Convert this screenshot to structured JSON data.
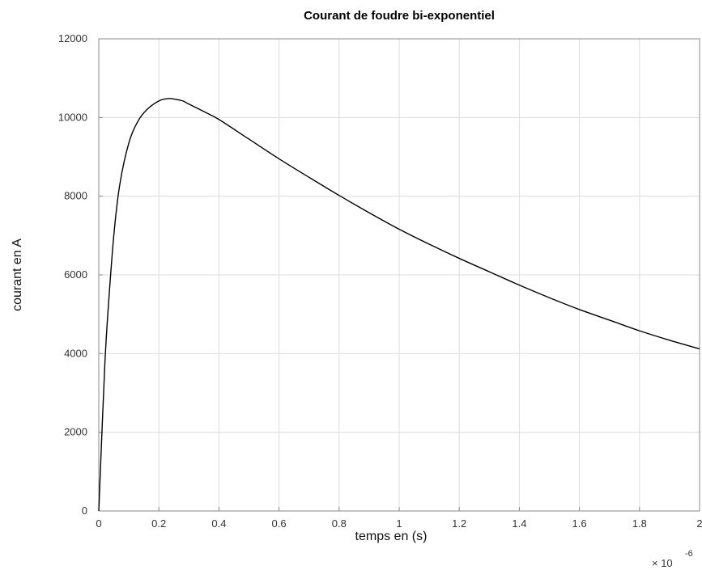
{
  "chart_data": {
    "type": "line",
    "title": "Courant de foudre bi-exponentiel",
    "xlabel": "temps en (s)",
    "ylabel": "courant en A",
    "x_multiplier": {
      "base": "× 10",
      "exponent": "-6"
    },
    "xlim": [
      0,
      2
    ],
    "ylim": [
      0,
      12000
    ],
    "x_ticks": [
      "0",
      "0.2",
      "0.4",
      "0.6",
      "0.8",
      "1",
      "1.2",
      "1.4",
      "1.6",
      "1.8",
      "2"
    ],
    "y_ticks": [
      "0",
      "2000",
      "4000",
      "6000",
      "8000",
      "10000",
      "12000"
    ],
    "grid": true,
    "line_color": "#000000",
    "series": [
      {
        "x": [
          0,
          0.01,
          0.02,
          0.03,
          0.05,
          0.07,
          0.1,
          0.13,
          0.16,
          0.2,
          0.23,
          0.25,
          0.28,
          0.3,
          0.35,
          0.4,
          0.5,
          0.6,
          0.7,
          0.8,
          0.9,
          1.0,
          1.1,
          1.2,
          1.3,
          1.4,
          1.5,
          1.6,
          1.7,
          1.8,
          1.9,
          2.0
        ],
        "y": [
          0,
          1900,
          3700,
          5000,
          7000,
          8300,
          9350,
          9900,
          10200,
          10420,
          10480,
          10470,
          10420,
          10340,
          10150,
          9950,
          9450,
          8950,
          8480,
          8020,
          7580,
          7160,
          6780,
          6420,
          6080,
          5740,
          5420,
          5120,
          4850,
          4580,
          4340,
          4120
        ]
      }
    ]
  }
}
